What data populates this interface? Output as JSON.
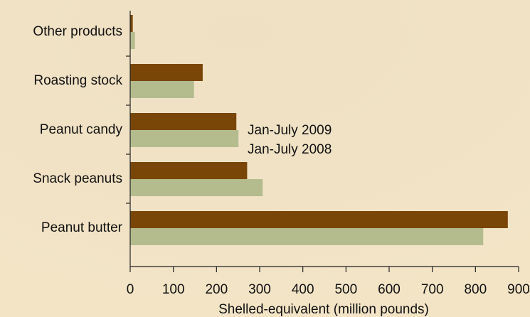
{
  "chart_data": {
    "type": "bar",
    "orientation": "horizontal",
    "x_label": "Shelled-equivalent (million pounds)",
    "categories": [
      "Other products",
      "Roasting stock",
      "Peanut candy",
      "Snack peanuts",
      "Peanut butter"
    ],
    "series": [
      {
        "name": "Jan-July 2009",
        "color": "#7a4608",
        "values": [
          6,
          168,
          246,
          271,
          875
        ]
      },
      {
        "name": "Jan-July 2008",
        "color": "#b4bc8e",
        "values": [
          11,
          148,
          251,
          307,
          818
        ]
      }
    ],
    "xlim": [
      0,
      900
    ],
    "xticks": [
      0,
      100,
      200,
      300,
      400,
      500,
      600,
      700,
      800,
      900
    ]
  }
}
